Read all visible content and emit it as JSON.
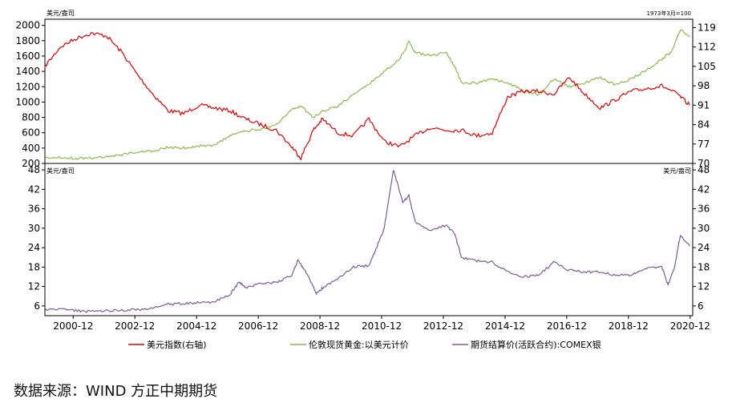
{
  "chart_data": [
    {
      "type": "line",
      "top_left_unit": "美元/盎司",
      "top_right_unit": "1973年3月=100",
      "yticks_left": [
        200,
        400,
        600,
        800,
        1000,
        1200,
        1400,
        1600,
        1800,
        2000
      ],
      "yticks_right": [
        70,
        77,
        84,
        91,
        98,
        105,
        112,
        119
      ],
      "ylim_left": [
        200,
        2080
      ],
      "ylim_right": [
        70,
        122
      ],
      "series": [
        {
          "name": "美元指数(右轴)",
          "axis": "right",
          "color": "#e00000",
          "x": [
            2000.0,
            2000.5,
            2001.0,
            2001.5,
            2002.0,
            2002.5,
            2003.0,
            2003.5,
            2004.0,
            2004.5,
            2005.0,
            2005.5,
            2006.0,
            2006.5,
            2007.0,
            2007.5,
            2008.0,
            2008.3,
            2008.7,
            2009.0,
            2009.5,
            2010.0,
            2010.5,
            2011.0,
            2011.5,
            2012.0,
            2012.5,
            2013.0,
            2013.5,
            2014.0,
            2014.5,
            2015.0,
            2015.5,
            2016.0,
            2016.5,
            2017.0,
            2017.5,
            2018.0,
            2018.5,
            2019.0,
            2019.5,
            2020.0,
            2020.5,
            2020.9
          ],
          "y": [
            105,
            112,
            115,
            117,
            116,
            110,
            102,
            95,
            89,
            88,
            91,
            90,
            89,
            86,
            84,
            82,
            76,
            72,
            82,
            86,
            81,
            80,
            86,
            78,
            76,
            80,
            83,
            82,
            82,
            80,
            81,
            94,
            96,
            96,
            95,
            101,
            95,
            90,
            93,
            96,
            97,
            98,
            95,
            91
          ]
        },
        {
          "name": "伦敦现货黄金:以美元计价",
          "axis": "left",
          "color": "#8cb84c",
          "x": [
            2000.0,
            2000.5,
            2001.0,
            2001.5,
            2002.0,
            2002.5,
            2003.0,
            2003.5,
            2004.0,
            2004.5,
            2005.0,
            2005.5,
            2006.0,
            2006.5,
            2007.0,
            2007.5,
            2008.0,
            2008.3,
            2008.7,
            2009.0,
            2009.5,
            2010.0,
            2010.5,
            2011.0,
            2011.5,
            2011.8,
            2012.0,
            2012.5,
            2013.0,
            2013.3,
            2013.5,
            2014.0,
            2014.5,
            2015.0,
            2015.5,
            2016.0,
            2016.5,
            2017.0,
            2017.5,
            2018.0,
            2018.5,
            2019.0,
            2019.5,
            2020.0,
            2020.3,
            2020.6,
            2020.9
          ],
          "y": [
            285,
            280,
            265,
            270,
            290,
            315,
            350,
            365,
            410,
            400,
            430,
            440,
            560,
            620,
            650,
            700,
            900,
            950,
            800,
            880,
            950,
            1100,
            1230,
            1400,
            1560,
            1780,
            1650,
            1600,
            1650,
            1450,
            1250,
            1250,
            1300,
            1250,
            1150,
            1100,
            1300,
            1200,
            1250,
            1320,
            1220,
            1300,
            1420,
            1560,
            1650,
            1950,
            1850
          ]
        }
      ]
    },
    {
      "type": "line",
      "left_unit": "美元/盎司",
      "right_unit": "美元/盎司",
      "yticks": [
        6,
        12,
        18,
        24,
        30,
        36,
        42,
        48
      ],
      "ylim": [
        3,
        50
      ],
      "x_ticks": [
        "2000-12",
        "2002-12",
        "2004-12",
        "2006-12",
        "2008-12",
        "2010-12",
        "2012-12",
        "2014-12",
        "2016-12",
        "2018-12",
        "2020-12"
      ],
      "series": [
        {
          "name": "期货结算价(活跃合约):COMEX银",
          "color": "#7a5ba0",
          "x": [
            2000.0,
            2000.5,
            2001.0,
            2001.5,
            2002.0,
            2002.5,
            2003.0,
            2003.5,
            2004.0,
            2004.5,
            2005.0,
            2005.5,
            2006.0,
            2006.3,
            2006.5,
            2007.0,
            2007.5,
            2008.0,
            2008.2,
            2008.5,
            2008.8,
            2009.0,
            2009.5,
            2010.0,
            2010.5,
            2010.8,
            2011.0,
            2011.3,
            2011.6,
            2011.8,
            2012.0,
            2012.5,
            2013.0,
            2013.3,
            2013.5,
            2014.0,
            2014.5,
            2015.0,
            2015.5,
            2016.0,
            2016.5,
            2017.0,
            2017.5,
            2018.0,
            2018.5,
            2019.0,
            2019.5,
            2020.0,
            2020.2,
            2020.4,
            2020.6,
            2020.9
          ],
          "y": [
            5.0,
            4.9,
            4.6,
            4.3,
            4.6,
            4.7,
            4.9,
            5.2,
            6.5,
            6.8,
            7.0,
            7.3,
            9.5,
            13.5,
            11.5,
            13.0,
            13.2,
            15.5,
            20.0,
            16.0,
            10.0,
            11.5,
            14.5,
            18.0,
            18.5,
            25.0,
            30.0,
            48.0,
            38.0,
            40.0,
            32.0,
            29.0,
            31.0,
            28.0,
            21.0,
            20.0,
            19.5,
            16.5,
            15.0,
            15.5,
            19.5,
            17.0,
            16.5,
            16.5,
            15.5,
            15.5,
            17.5,
            18.0,
            12.5,
            17.5,
            28.0,
            24.5
          ]
        }
      ]
    }
  ],
  "legend": [
    "美元指数(右轴)",
    "伦敦现货黄金:以美元计价",
    "期货结算价(活跃合约):COMEX银"
  ],
  "source": "数据来源：WIND  方正中期期货"
}
